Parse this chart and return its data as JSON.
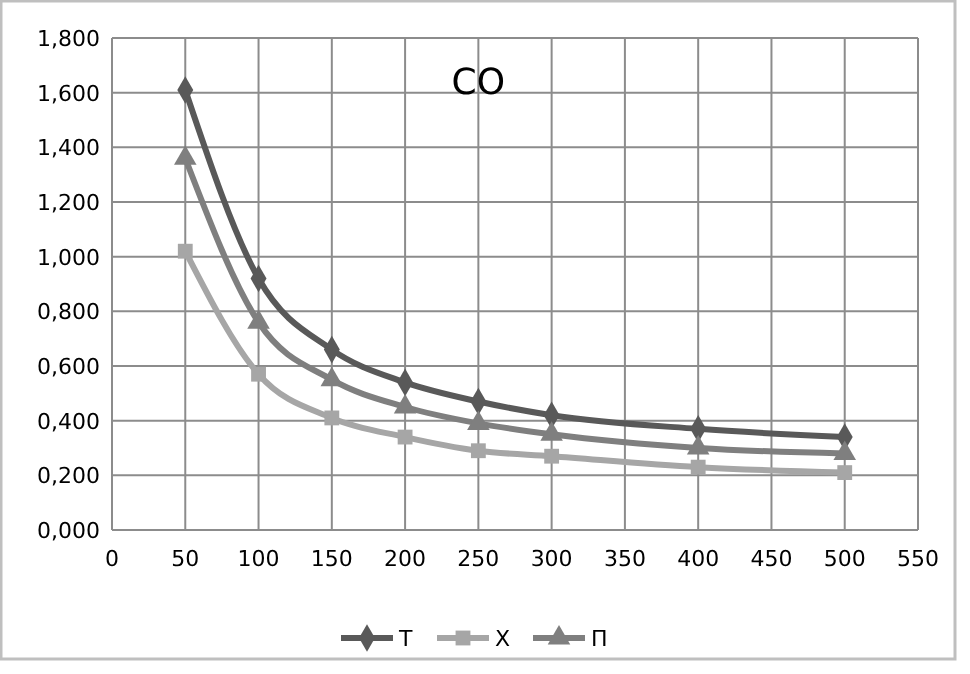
{
  "chart_data": {
    "type": "line",
    "title": "CO",
    "x": [
      50,
      100,
      150,
      200,
      250,
      300,
      400,
      500
    ],
    "series": [
      {
        "name": "Т",
        "color": "#595959",
        "marker": "diamond",
        "values": [
          1.61,
          0.92,
          0.66,
          0.54,
          0.47,
          0.42,
          0.37,
          0.34
        ]
      },
      {
        "name": "Х",
        "color": "#a6a6a6",
        "marker": "square",
        "values": [
          1.02,
          0.57,
          0.41,
          0.34,
          0.29,
          0.27,
          0.23,
          0.21
        ]
      },
      {
        "name": "П",
        "color": "#7f7f7f",
        "marker": "triangle",
        "values": [
          1.36,
          0.76,
          0.55,
          0.45,
          0.39,
          0.35,
          0.3,
          0.28
        ]
      }
    ],
    "xlim": [
      0,
      550
    ],
    "xticks": [
      0,
      50,
      100,
      150,
      200,
      250,
      300,
      350,
      400,
      450,
      500,
      550
    ],
    "ylim": [
      0,
      1.8
    ],
    "yticks": [
      {
        "value": 0,
        "label": "0,000"
      },
      {
        "value": 0.2,
        "label": "0,200"
      },
      {
        "value": 0.4,
        "label": "0,400"
      },
      {
        "value": 0.6,
        "label": "0,600"
      },
      {
        "value": 0.8,
        "label": "0,800"
      },
      {
        "value": 1,
        "label": "1,000"
      },
      {
        "value": 1.2,
        "label": "1,200"
      },
      {
        "value": 1.4,
        "label": "1,400"
      },
      {
        "value": 1.6,
        "label": "1,600"
      },
      {
        "value": 1.8,
        "label": "1,800"
      }
    ],
    "grid": true,
    "legend": "bottom"
  }
}
